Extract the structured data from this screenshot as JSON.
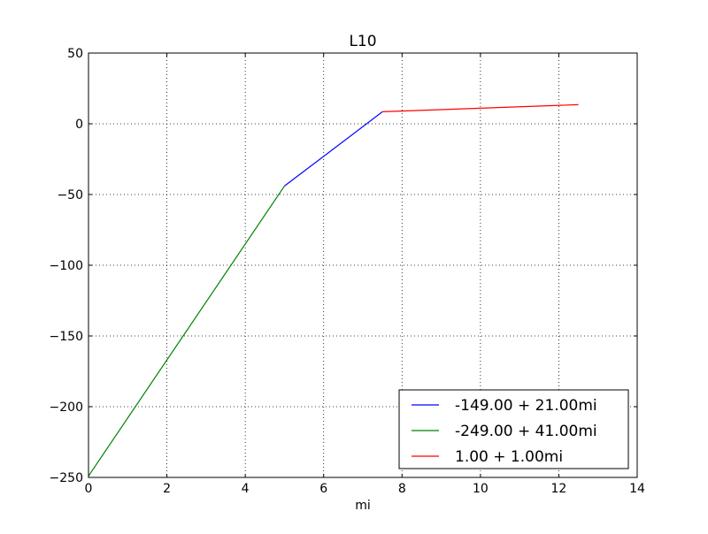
{
  "chart_data": {
    "type": "line",
    "title": "L10",
    "xlabel": "mi",
    "ylabel": "",
    "xlim": [
      0,
      14
    ],
    "ylim": [
      -250,
      50
    ],
    "x_ticks": [
      0,
      2,
      4,
      6,
      8,
      10,
      12,
      14
    ],
    "y_ticks": [
      50,
      0,
      -50,
      -100,
      -150,
      -200,
      -250
    ],
    "x_tick_labels": [
      "0",
      "2",
      "4",
      "6",
      "8",
      "10",
      "12",
      "14"
    ],
    "y_tick_labels": [
      "50",
      "0",
      "−50",
      "−100",
      "−150",
      "−200",
      "−250"
    ],
    "grid": true,
    "legend_position": "lower-right",
    "series": [
      {
        "name": "-149.00 + 21.00mi",
        "color": "#0000ff",
        "x": [
          5,
          7.5
        ],
        "y": [
          -44,
          8.5
        ]
      },
      {
        "name": "-249.00 + 41.00mi",
        "color": "#008000",
        "x": [
          0,
          5
        ],
        "y": [
          -249,
          -44
        ]
      },
      {
        "name": "1.00 + 1.00mi",
        "color": "#ff0000",
        "x": [
          7.5,
          12.5
        ],
        "y": [
          8.5,
          13.5
        ]
      }
    ]
  }
}
